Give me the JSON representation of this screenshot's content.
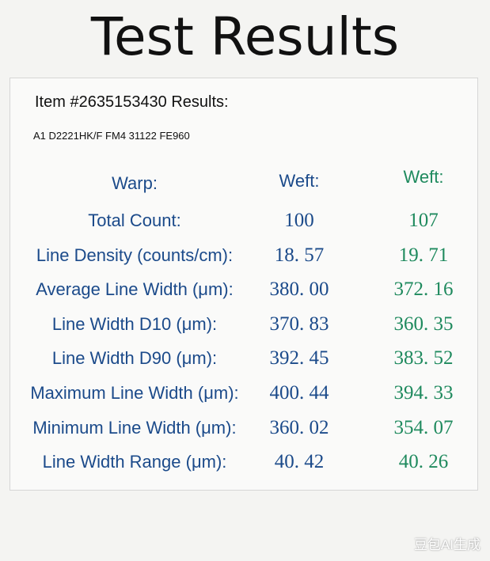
{
  "header": {
    "title": "Test Results"
  },
  "item": {
    "title": "Item #2635153430 Results:",
    "code": "A1 D2221HK/F FM4 31122 FE960"
  },
  "table": {
    "columns": [
      "Warp:",
      "Weft:",
      "Weft:"
    ],
    "rows": [
      [
        "Total Count:",
        "100",
        "107"
      ],
      [
        "Line Density (counts/cm):",
        "18. 57",
        "19. 71"
      ],
      [
        "Average Line Width (μm):",
        "380. 00",
        "372. 16"
      ],
      [
        "Line Width D10 (μm):",
        "370. 83",
        "360. 35"
      ],
      [
        "Line Width D90 (μm):",
        "392. 45",
        "383. 52"
      ],
      [
        "Maximum Line Width (μm):",
        "400. 44",
        "394. 33"
      ],
      [
        "Minimum Line Width (μm):",
        "360. 02",
        "354. 07"
      ],
      [
        "Line Width Range (μm):",
        "40. 42",
        "40. 26"
      ]
    ]
  },
  "watermark": "豆包AI生成"
}
